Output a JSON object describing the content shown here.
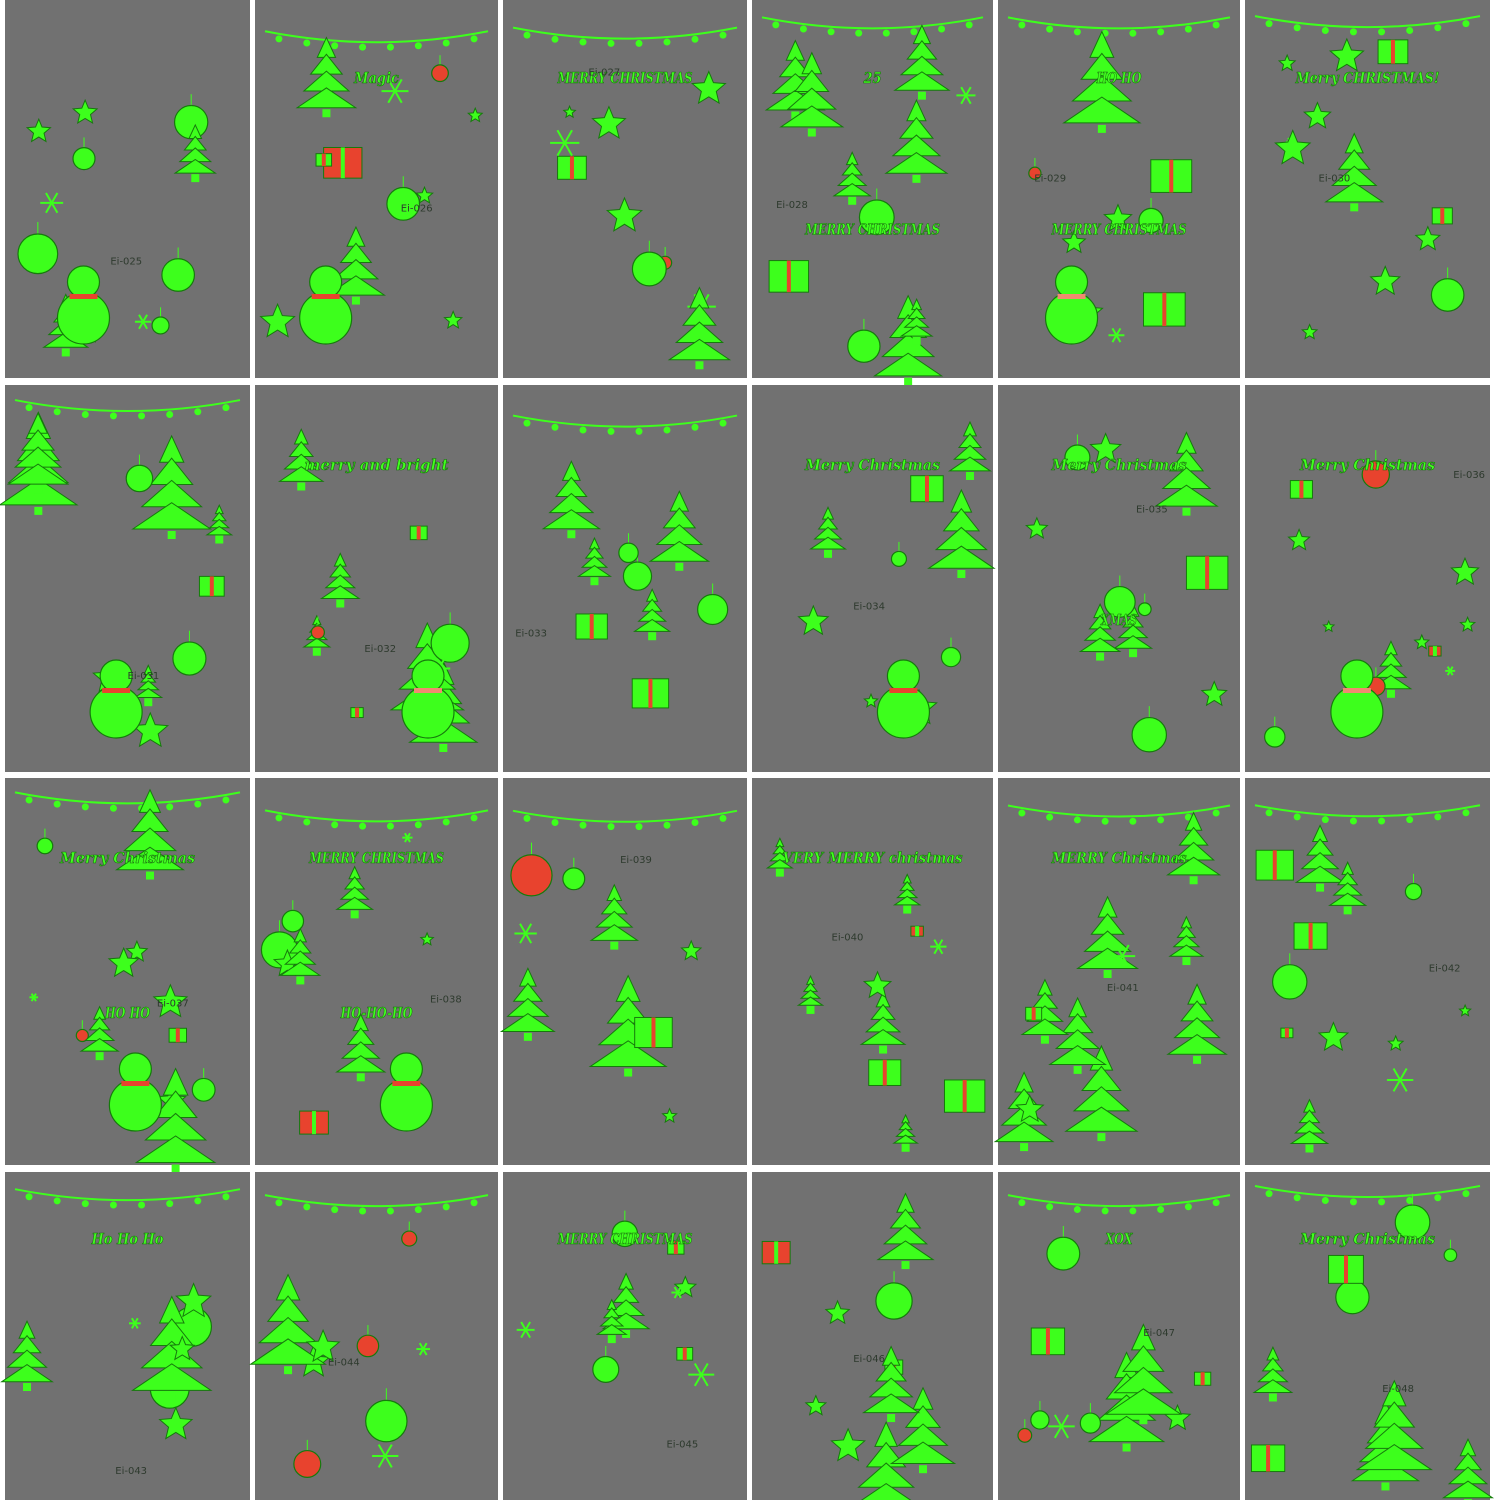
{
  "sheets": [
    {
      "label": "Ei-025",
      "texts": []
    },
    {
      "label": "Ei-026",
      "texts": [
        "Magic"
      ]
    },
    {
      "label": "Ei-027",
      "texts": [
        "MERRY CHRISTMAS"
      ]
    },
    {
      "label": "Ei-028",
      "texts": [
        "25",
        "MERRY CHRISTMAS"
      ]
    },
    {
      "label": "Ei-029",
      "texts": [
        "HO HO",
        "MERRY CHRISTMAS"
      ]
    },
    {
      "label": "Ei-030",
      "texts": [
        "Merry CHRISTMAS!"
      ]
    },
    {
      "label": "Ei-031",
      "texts": []
    },
    {
      "label": "Ei-032",
      "texts": [
        "merry and bright"
      ]
    },
    {
      "label": "Ei-033",
      "texts": []
    },
    {
      "label": "Ei-034",
      "texts": [
        "Merry Christmas"
      ]
    },
    {
      "label": "Ei-035",
      "texts": [
        "Merry Christmas",
        "XMAS"
      ]
    },
    {
      "label": "Ei-036",
      "texts": [
        "Merry Christmas"
      ]
    },
    {
      "label": "Ei-037",
      "texts": [
        "Merry Christmas",
        "HO HO"
      ]
    },
    {
      "label": "Ei-038",
      "texts": [
        "MERRY CHRISTMAS",
        "HO-HO-HO"
      ]
    },
    {
      "label": "Ei-039",
      "texts": []
    },
    {
      "label": "Ei-040",
      "texts": [
        "VERY MERRY christmas"
      ]
    },
    {
      "label": "Ei-041",
      "texts": [
        "MERRY Christmas"
      ]
    },
    {
      "label": "Ei-042",
      "texts": []
    },
    {
      "label": "Ei-043",
      "texts": [
        "Ho Ho Ho"
      ]
    },
    {
      "label": "Ei-044",
      "texts": []
    },
    {
      "label": "Ei-045",
      "texts": [
        "MERRY CHRISTMAS"
      ]
    },
    {
      "label": "Ei-046",
      "texts": []
    },
    {
      "label": "Ei-047",
      "texts": [
        "XOX"
      ]
    },
    {
      "label": "Ei-048",
      "texts": [
        "Merry Christmas"
      ]
    }
  ]
}
